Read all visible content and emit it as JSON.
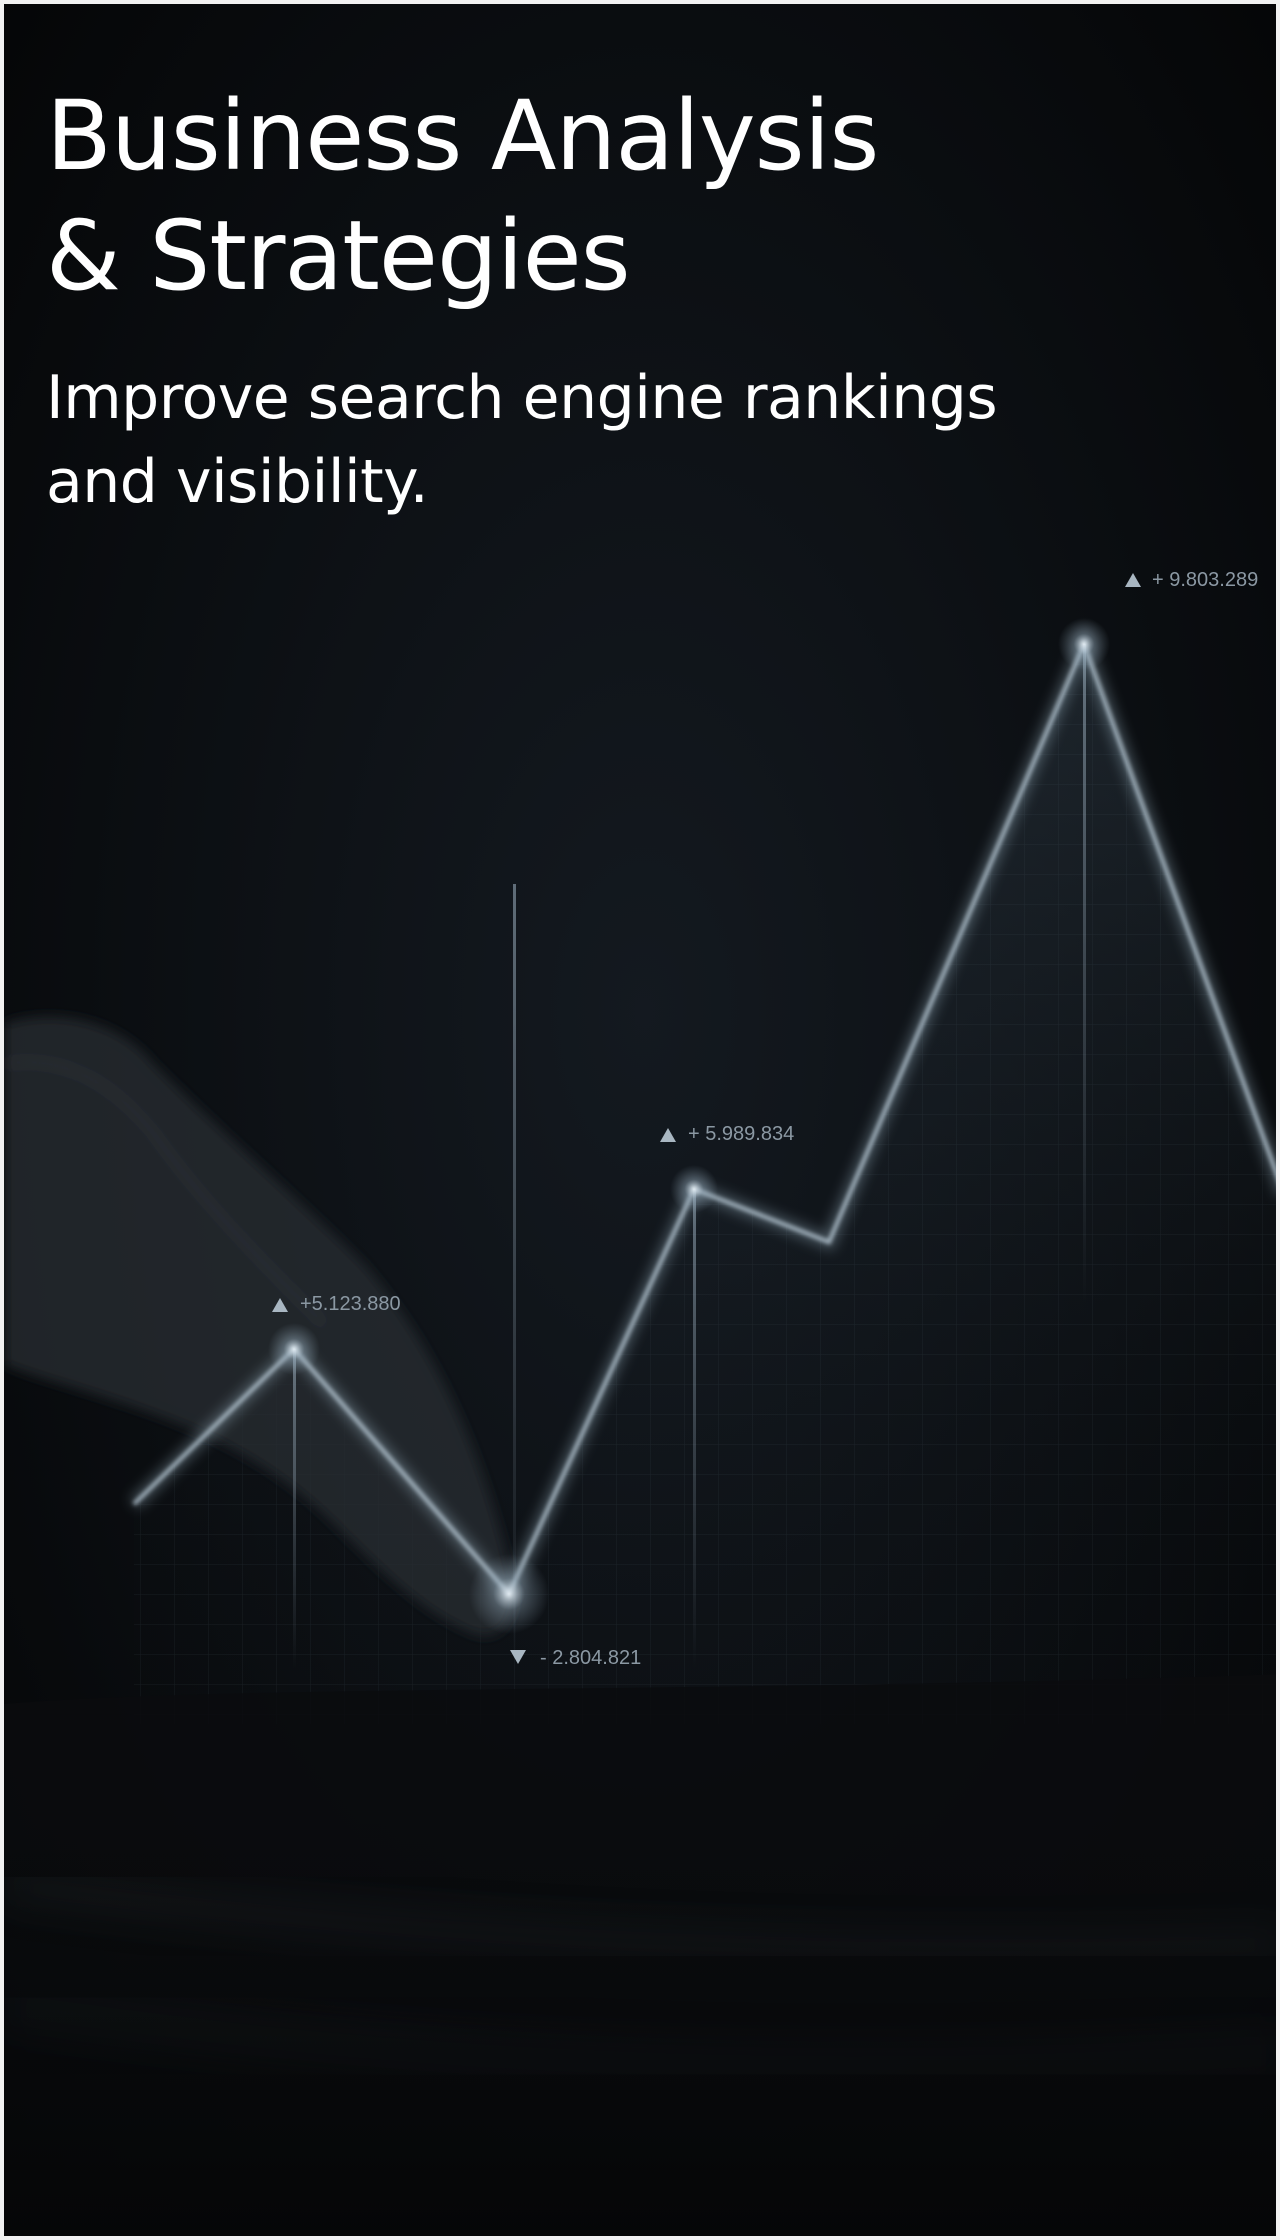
{
  "hero": {
    "title_line1": "Business Analysis",
    "title_line2": "& Strategies",
    "subtitle_line1": "Improve search engine rankings",
    "subtitle_line2": "and visibility."
  },
  "chart_labels": {
    "peak1": "+5.123.880",
    "trough": "- 2.804.821",
    "peak2": "+ 5.989.834",
    "peak3": "+ 9.803.289"
  },
  "colors": {
    "background": "#07090b",
    "text": "#ffffff",
    "line_glow": "#a8bfd0",
    "label_text": "#8b98a3"
  }
}
